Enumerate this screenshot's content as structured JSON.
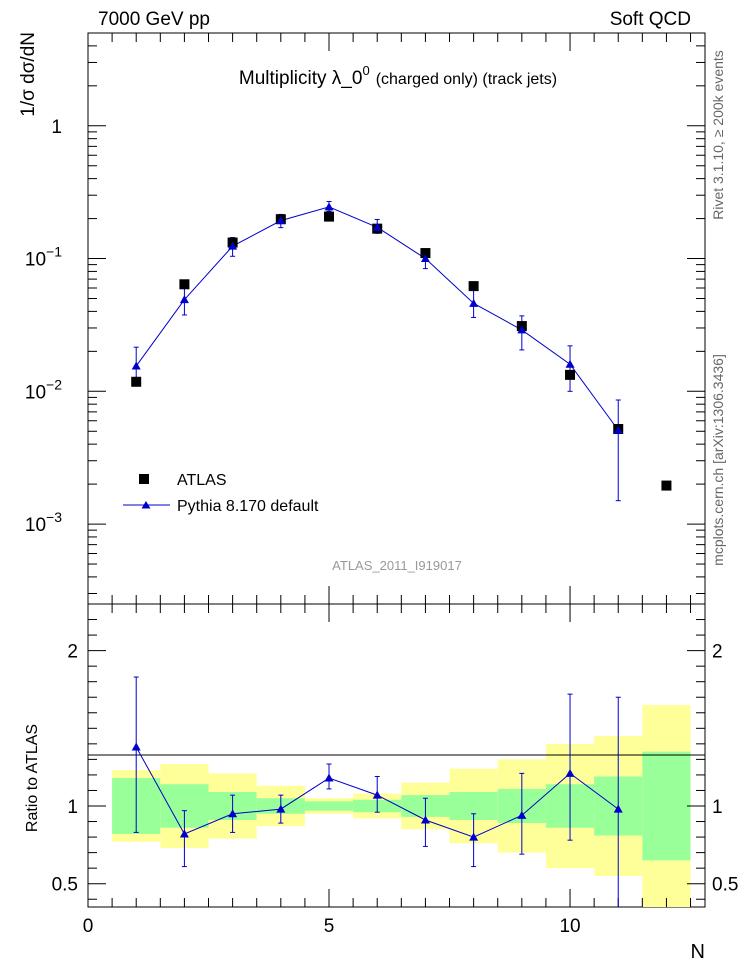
{
  "header": {
    "left": "7000 GeV pp",
    "right": "Soft QCD"
  },
  "side": {
    "rivet": "Rivet 3.1.10, ≥ 200k events",
    "mcplots": "mcplots.cern.ch [arXiv:1306.3436]"
  },
  "chart_data": {
    "type": "scatter",
    "title_main": "Multiplicity  λ_0",
    "title_sup": "0",
    "title_tail": "(charged only) (track jets)",
    "ylabel": "1/σ dσ/dN",
    "ratio_ylabel": "Ratio to ATLAS",
    "xlabel": "N",
    "watermark": "ATLAS_2011_I919017",
    "xlim": [
      0,
      12.8
    ],
    "ylim": [
      0.00025,
      5
    ],
    "yscale": "log",
    "ratio_ylim": [
      0.35,
      2.3
    ],
    "x_ticks": [
      "0",
      "5",
      "10"
    ],
    "y_ticks": [
      {
        "base": "10",
        "exp": "−3"
      },
      {
        "base": "10",
        "exp": "−2"
      },
      {
        "base": "10",
        "exp": "−1"
      },
      {
        "base": "1",
        "exp": ""
      }
    ],
    "ratio_ticks": [
      "0.5",
      "1",
      "2"
    ],
    "legend": {
      "placement": "lower-left",
      "atlas": "ATLAS",
      "pythia": "Pythia 8.170 default"
    },
    "series": [
      {
        "name": "ATLAS",
        "color": "#000000",
        "marker": "square",
        "x": [
          1,
          2,
          3,
          4,
          5,
          6,
          7,
          8,
          9,
          10,
          11,
          12
        ],
        "y": [
          0.0118,
          0.064,
          0.132,
          0.198,
          0.207,
          0.168,
          0.11,
          0.062,
          0.031,
          0.0133,
          0.0052,
          0.00195
        ],
        "ratio_band_inner": [
          0.18,
          0.14,
          0.09,
          0.05,
          0.03,
          0.04,
          0.07,
          0.09,
          0.11,
          0.14,
          0.19,
          0.35
        ],
        "ratio_band_outer": [
          0.23,
          0.27,
          0.21,
          0.13,
          0.05,
          0.08,
          0.15,
          0.24,
          0.3,
          0.4,
          0.45,
          0.65
        ]
      },
      {
        "name": "Pythia 8.170 default",
        "color": "#0000cc",
        "marker": "triangle",
        "x": [
          1,
          2,
          3,
          4,
          5,
          6,
          7,
          8,
          9,
          10,
          11
        ],
        "y": [
          0.0155,
          0.049,
          0.124,
          0.193,
          0.245,
          0.172,
          0.1,
          0.046,
          0.029,
          0.016,
          0.0051
        ],
        "yerr_low": [
          0.0034,
          0.0114,
          0.02,
          0.022,
          0.018,
          0.017,
          0.016,
          0.01,
          0.0085,
          0.006,
          0.0036
        ],
        "yerr_high": [
          0.006,
          0.012,
          0.02,
          0.022,
          0.024,
          0.025,
          0.017,
          0.012,
          0.008,
          0.006,
          0.0035
        ],
        "ratio": [
          1.38,
          0.82,
          0.95,
          0.98,
          1.18,
          1.07,
          0.91,
          0.8,
          0.94,
          1.21,
          0.98
        ],
        "ratio_err_low": [
          0.55,
          0.21,
          0.12,
          0.09,
          0.07,
          0.11,
          0.17,
          0.19,
          0.25,
          0.43,
          0.65
        ],
        "ratio_err_high": [
          0.45,
          0.15,
          0.12,
          0.09,
          0.09,
          0.12,
          0.14,
          0.15,
          0.27,
          0.51,
          0.72
        ]
      }
    ]
  }
}
